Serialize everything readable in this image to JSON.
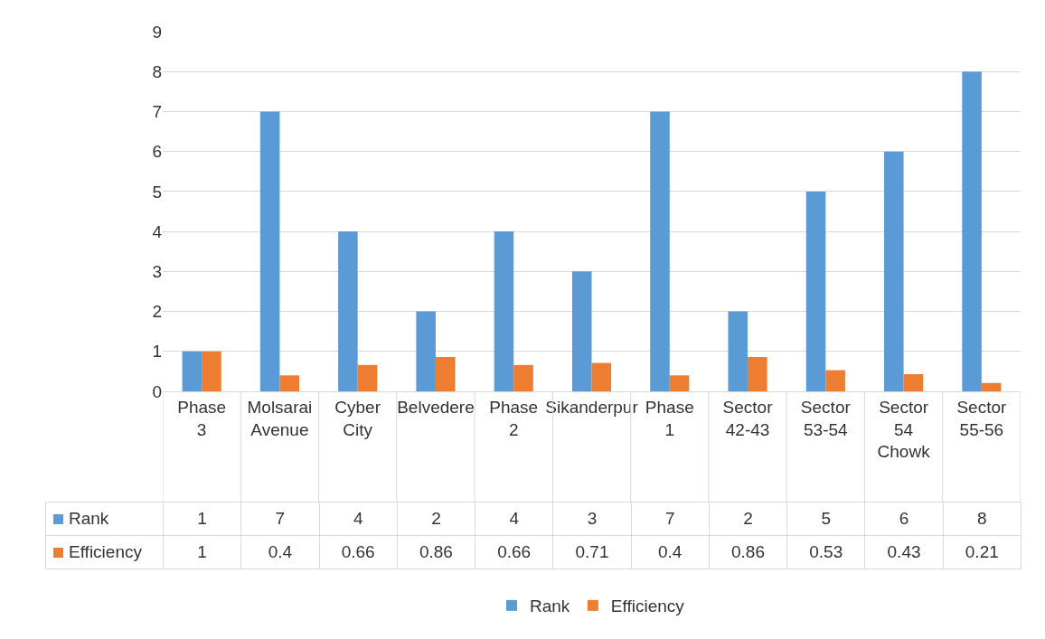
{
  "chart_data": {
    "type": "bar",
    "categories": [
      "Phase 3",
      "Molsarai Avenue",
      "Cyber City",
      "Belvedere",
      "Phase 2",
      "Sikanderpur",
      "Phase 1",
      "Sector 42-43",
      "Sector 53-54",
      "Sector 54 Chowk",
      "Sector 55-56"
    ],
    "series": [
      {
        "name": "Rank",
        "color": "#5b9bd5",
        "values": [
          1,
          7,
          4,
          2,
          4,
          3,
          7,
          2,
          5,
          6,
          8
        ]
      },
      {
        "name": "Efficiency",
        "color": "#ed7d31",
        "values": [
          1,
          0.4,
          0.66,
          0.86,
          0.66,
          0.71,
          0.4,
          0.86,
          0.53,
          0.43,
          0.21
        ]
      }
    ],
    "ylim": [
      0,
      9
    ],
    "yticks": [
      0,
      1,
      2,
      3,
      4,
      5,
      6,
      7,
      8,
      9
    ],
    "grid": "y",
    "legend": "bottom",
    "data_labels": true
  }
}
